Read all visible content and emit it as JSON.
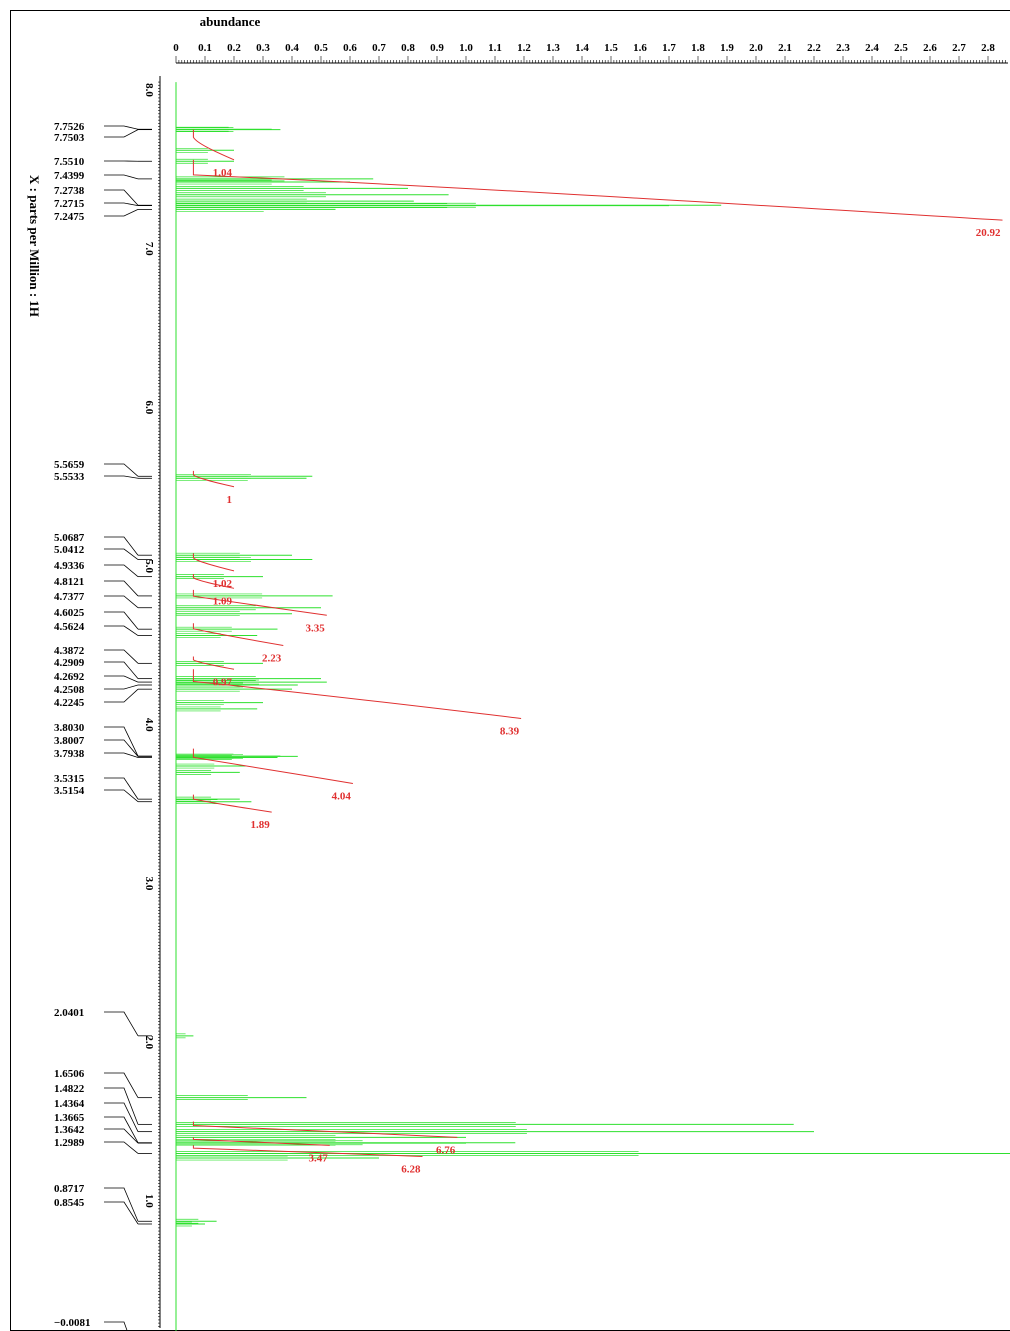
{
  "chart_data": {
    "type": "line",
    "title": "abundance",
    "ylabel": "X : parts per Million : 1H",
    "abundance_ticks": [
      "0",
      "0.1",
      "0.2",
      "0.3",
      "0.4",
      "0.5",
      "0.6",
      "0.7",
      "0.8",
      "0.9",
      "1.0",
      "1.1",
      "1.2",
      "1.3",
      "1.4",
      "1.5",
      "1.6",
      "1.7",
      "1.8",
      "1.9",
      "2.0",
      "2.1",
      "2.2",
      "2.3",
      "2.4",
      "2.5",
      "2.6",
      "2.7",
      "2.8",
      "2."
    ],
    "abundance_range": [
      0,
      2.9
    ],
    "ppm_ticks": [
      "8.0",
      "7.0",
      "6.0",
      "5.0",
      "4.0",
      "3.0",
      "2.0",
      "1.0",
      "0"
    ],
    "ppm_range": [
      8.0,
      0.0
    ],
    "peak_labels": [
      "7.7526",
      "7.7503",
      "7.5510",
      "7.4399",
      "7.2738",
      "7.2715",
      "7.2475",
      "5.5659",
      "5.5533",
      "5.0687",
      "5.0412",
      "4.9336",
      "4.8121",
      "4.7377",
      "4.6025",
      "4.5624",
      "4.3872",
      "4.2909",
      "4.2692",
      "4.2508",
      "4.2245",
      "3.8030",
      "3.8007",
      "3.7938",
      "3.5315",
      "3.5154",
      "2.0401",
      "1.6506",
      "1.4822",
      "1.4364",
      "1.3665",
      "1.3642",
      "1.2989",
      "0.8717",
      "0.8545",
      "−0.0081"
    ],
    "integrals": [
      {
        "label": "1.04",
        "ppm_start": 7.75,
        "ppm_end": 7.56,
        "cumulative": 0.2
      },
      {
        "label": "20.92",
        "ppm_start": 7.56,
        "ppm_end": 7.18,
        "cumulative": 2.85
      },
      {
        "label": "1",
        "ppm_start": 5.6,
        "ppm_end": 5.5,
        "cumulative": 0.2
      },
      {
        "label": "1.02",
        "ppm_start": 5.08,
        "ppm_end": 4.97,
        "cumulative": 0.2
      },
      {
        "label": "1.09",
        "ppm_start": 4.95,
        "ppm_end": 4.86,
        "cumulative": 0.2
      },
      {
        "label": "3.35",
        "ppm_start": 4.85,
        "ppm_end": 4.69,
        "cumulative": 0.52
      },
      {
        "label": "2.23",
        "ppm_start": 4.64,
        "ppm_end": 4.5,
        "cumulative": 0.37
      },
      {
        "label": "0.97",
        "ppm_start": 4.43,
        "ppm_end": 4.35,
        "cumulative": 0.2
      },
      {
        "label": "8.39",
        "ppm_start": 4.35,
        "ppm_end": 4.04,
        "cumulative": 1.19
      },
      {
        "label": "4.04",
        "ppm_start": 3.85,
        "ppm_end": 3.63,
        "cumulative": 0.61
      },
      {
        "label": "1.89",
        "ppm_start": 3.56,
        "ppm_end": 3.45,
        "cumulative": 0.33
      },
      {
        "label": "6.76",
        "ppm_start": 1.5,
        "ppm_end": 1.4,
        "cumulative": 0.97
      },
      {
        "label": "3.47",
        "ppm_start": 1.4,
        "ppm_end": 1.35,
        "cumulative": 0.53
      },
      {
        "label": "6.28",
        "ppm_start": 1.35,
        "ppm_end": 1.28,
        "cumulative": 0.85
      }
    ],
    "spectrum_peaks": [
      {
        "ppm": 7.7526,
        "abundance": 0.33
      },
      {
        "ppm": 7.7503,
        "abundance": 0.36
      },
      {
        "ppm": 7.62,
        "abundance": 0.2
      },
      {
        "ppm": 7.551,
        "abundance": 0.2
      },
      {
        "ppm": 7.4399,
        "abundance": 0.68
      },
      {
        "ppm": 7.42,
        "abundance": 0.6
      },
      {
        "ppm": 7.38,
        "abundance": 0.8
      },
      {
        "ppm": 7.34,
        "abundance": 0.94
      },
      {
        "ppm": 7.3,
        "abundance": 0.82
      },
      {
        "ppm": 7.2738,
        "abundance": 1.88
      },
      {
        "ppm": 7.2715,
        "abundance": 1.7
      },
      {
        "ppm": 7.2475,
        "abundance": 0.55
      },
      {
        "ppm": 5.5659,
        "abundance": 0.47
      },
      {
        "ppm": 5.5533,
        "abundance": 0.45
      },
      {
        "ppm": 5.0687,
        "abundance": 0.4
      },
      {
        "ppm": 5.0412,
        "abundance": 0.47
      },
      {
        "ppm": 4.9336,
        "abundance": 0.3
      },
      {
        "ppm": 4.8121,
        "abundance": 0.54
      },
      {
        "ppm": 4.7377,
        "abundance": 0.5
      },
      {
        "ppm": 4.7,
        "abundance": 0.4
      },
      {
        "ppm": 4.6025,
        "abundance": 0.35
      },
      {
        "ppm": 4.5624,
        "abundance": 0.28
      },
      {
        "ppm": 4.3872,
        "abundance": 0.3
      },
      {
        "ppm": 4.2909,
        "abundance": 0.5
      },
      {
        "ppm": 4.2692,
        "abundance": 0.52
      },
      {
        "ppm": 4.2508,
        "abundance": 0.42
      },
      {
        "ppm": 4.2245,
        "abundance": 0.4
      },
      {
        "ppm": 4.14,
        "abundance": 0.3
      },
      {
        "ppm": 4.1,
        "abundance": 0.28
      },
      {
        "ppm": 3.803,
        "abundance": 0.36
      },
      {
        "ppm": 3.8007,
        "abundance": 0.42
      },
      {
        "ppm": 3.7938,
        "abundance": 0.35
      },
      {
        "ppm": 3.74,
        "abundance": 0.24
      },
      {
        "ppm": 3.7,
        "abundance": 0.22
      },
      {
        "ppm": 3.5315,
        "abundance": 0.22
      },
      {
        "ppm": 3.5154,
        "abundance": 0.26
      },
      {
        "ppm": 2.0401,
        "abundance": 0.06
      },
      {
        "ppm": 1.6506,
        "abundance": 0.45
      },
      {
        "ppm": 1.4822,
        "abundance": 2.13
      },
      {
        "ppm": 1.4364,
        "abundance": 2.2
      },
      {
        "ppm": 1.4,
        "abundance": 1.0
      },
      {
        "ppm": 1.3665,
        "abundance": 1.17
      },
      {
        "ppm": 1.3642,
        "abundance": 1.0
      },
      {
        "ppm": 1.2989,
        "abundance": 2.9
      },
      {
        "ppm": 1.27,
        "abundance": 0.7
      },
      {
        "ppm": 0.8717,
        "abundance": 0.14
      },
      {
        "ppm": 0.8545,
        "abundance": 0.1
      },
      {
        "ppm": -0.0081,
        "abundance": 0.8
      }
    ],
    "colors": {
      "spectrum": "#2ee02e",
      "integral": "#e03030",
      "axis": "#000000"
    },
    "grid": false
  }
}
